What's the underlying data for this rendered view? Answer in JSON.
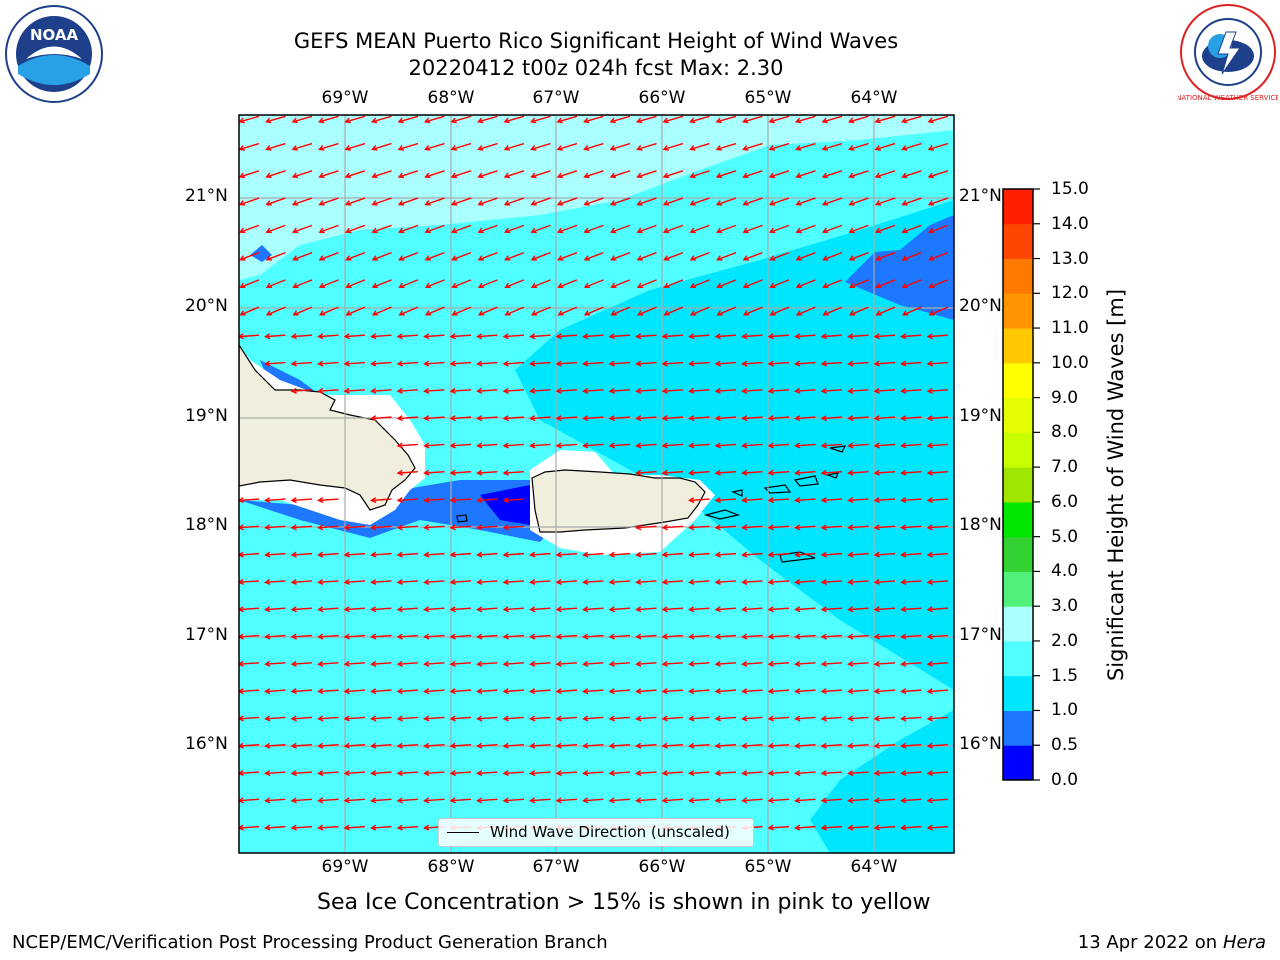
{
  "title_line1": "GEFS MEAN Puerto Rico Significant Height of Wind Waves",
  "title_line2": "20220412 t00z 024h fcst   Max: 2.30",
  "longitude_labels": [
    "69°W",
    "68°W",
    "67°W",
    "66°W",
    "65°W",
    "64°W"
  ],
  "latitude_labels": [
    "21°N",
    "20°N",
    "19°N",
    "18°N",
    "17°N",
    "16°N"
  ],
  "legend_label": "Wind Wave Direction (unscaled)",
  "colorbar": {
    "label": "Significant Height of Wind Waves [m]",
    "ticks": [
      "0.0",
      "0.5",
      "1.0",
      "1.5",
      "2.0",
      "3.0",
      "4.0",
      "5.0",
      "6.0",
      "7.0",
      "8.0",
      "9.0",
      "10.0",
      "11.0",
      "12.0",
      "13.0",
      "14.0",
      "15.0"
    ],
    "colors": [
      "#0000ff",
      "#1e78ff",
      "#00e6ff",
      "#50ffff",
      "#aaffff",
      "#50f07a",
      "#32d232",
      "#00e600",
      "#a0e600",
      "#c8ff00",
      "#e6ff00",
      "#ffff00",
      "#ffc800",
      "#ff9600",
      "#ff7800",
      "#ff4600",
      "#ff2000"
    ]
  },
  "subtitle": "Sea Ice Concentration > 15% is shown in pink to yellow",
  "footer_left": "NCEP/EMC/Verification Post Processing Product Generation Branch",
  "footer_date": "13 Apr 2022 on ",
  "footer_machine": "Hera",
  "logos": {
    "left": "NOAA",
    "right": "NATIONAL WEATHER SERVICE"
  },
  "colors": {
    "land": "#f0eedc",
    "arrow": "#ff0000",
    "grid": "#aaaaaa"
  }
}
